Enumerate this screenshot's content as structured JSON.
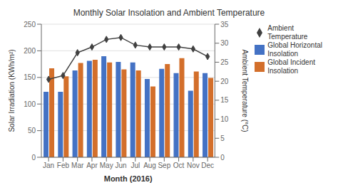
{
  "chart_data": {
    "type": "bar",
    "title": "Monthly Solar Insolation and Ambient Temperature",
    "xlabel": "Month (2016)",
    "ylabel": "Solar Irradiation (KWh/m²)",
    "y2label": "Ambient Temperature (°C)",
    "categories": [
      "Jan",
      "Feb",
      "Mar",
      "Apr",
      "May",
      "Jun",
      "Jul",
      "Aug",
      "Sep",
      "Oct",
      "Nov",
      "Dec"
    ],
    "series": [
      {
        "name": "Global Horizontal\nInsolation",
        "type": "bar",
        "color": "#4472C4",
        "values": [
          123,
          123,
          163,
          181,
          190,
          179,
          178,
          147,
          166,
          158,
          125,
          158
        ]
      },
      {
        "name": "Global Incident\nInsolation",
        "type": "bar",
        "color": "#D36F2B",
        "values": [
          167,
          152,
          177,
          183,
          178,
          165,
          163,
          133,
          175,
          186,
          161,
          149
        ]
      },
      {
        "name": "Ambient\nTemperature",
        "type": "line",
        "axis": "y2",
        "color": "#404040",
        "marker": "diamond",
        "values": [
          20.5,
          21.5,
          27.5,
          29.0,
          31.0,
          31.5,
          29.5,
          29.0,
          29.0,
          29.0,
          28.5,
          26.5
        ]
      }
    ],
    "ylim": [
      0,
      250
    ],
    "yticks": [
      0,
      50,
      100,
      150,
      200,
      250
    ],
    "y2lim": [
      0,
      35
    ],
    "y2ticks": [
      0,
      5,
      10,
      15,
      20,
      25,
      30,
      35
    ],
    "grid": true,
    "legend": "right"
  }
}
